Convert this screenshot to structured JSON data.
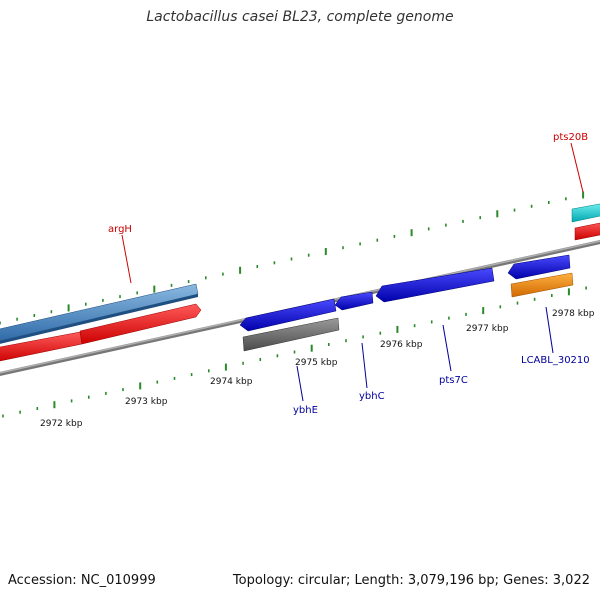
{
  "title": "Lactobacillus casei BL23, complete genome",
  "footer": {
    "accession": "Accession: NC_010999",
    "summary": "Topology: circular; Length: 3,079,196 bp; Genes: 3,022"
  },
  "colors": {
    "backbone": "#888888",
    "tick": "#2a8a2a",
    "label_red": "#cc0000",
    "label_blue": "#000099"
  },
  "scale_labels": [
    "2972 kbp",
    "2973 kbp",
    "2974 kbp",
    "2975 kbp",
    "2976 kbp",
    "2977 kbp",
    "2978 kbp"
  ],
  "gene_labels": [
    {
      "text": "argH",
      "color": "#cc0000"
    },
    {
      "text": "pts20B",
      "color": "#cc0000"
    },
    {
      "text": "ybhE",
      "color": "#000099"
    },
    {
      "text": "ybhC",
      "color": "#000099"
    },
    {
      "text": "pts7C",
      "color": "#000099"
    },
    {
      "text": "LCABL_30210",
      "color": "#000099"
    }
  ]
}
